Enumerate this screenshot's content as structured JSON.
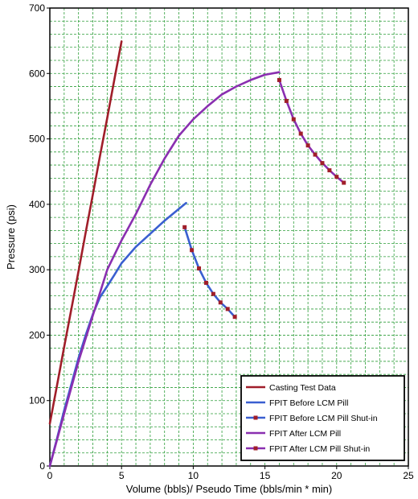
{
  "chart_data": {
    "type": "line",
    "xlabel": "Volume (bbls)/ Pseudo Time (bbls/min * min)",
    "ylabel": "Pressure (psi)",
    "xlim": [
      0,
      25
    ],
    "ylim": [
      0,
      700
    ],
    "xticks": [
      0,
      5,
      10,
      15,
      20,
      25
    ],
    "yticks": [
      0,
      100,
      200,
      300,
      400,
      500,
      600,
      700
    ],
    "grid": true,
    "grid_color": "#2e9e3a",
    "legend_position": "bottom-right",
    "series": [
      {
        "name": "Casting Test Data",
        "color": "#a01e2a",
        "marker": "none",
        "x": [
          0,
          0.5,
          1,
          1.5,
          2,
          2.5,
          3,
          3.5,
          4,
          4.5,
          5
        ],
        "y": [
          65,
          123,
          182,
          240,
          298,
          357,
          415,
          474,
          532,
          591,
          649
        ]
      },
      {
        "name": "FPIT Before LCM Pill",
        "color": "#3a5fd0",
        "marker": "none",
        "x": [
          0,
          0.5,
          1,
          1.5,
          2,
          2.5,
          3,
          3.5,
          4,
          4.5,
          5,
          6,
          7,
          8,
          9,
          9.5
        ],
        "y": [
          0,
          42,
          85,
          125,
          165,
          200,
          232,
          258,
          275,
          292,
          310,
          335,
          355,
          375,
          393,
          402
        ]
      },
      {
        "name": "FPIT Before LCM Pill Shut-in",
        "color": "#3a5fd0",
        "marker_color": "#a01e2a",
        "marker": "square",
        "x": [
          9.4,
          9.9,
          10.4,
          10.9,
          11.4,
          11.9,
          12.4,
          12.9
        ],
        "y": [
          365,
          330,
          302,
          280,
          263,
          250,
          240,
          228
        ]
      },
      {
        "name": "FPIT After LCM Pill",
        "color": "#8a2fb0",
        "marker": "none",
        "x": [
          0,
          0.5,
          1,
          2,
          3,
          4,
          5,
          6,
          7,
          8,
          9,
          10,
          11,
          12,
          13,
          14,
          15,
          16
        ],
        "y": [
          0,
          40,
          80,
          160,
          230,
          300,
          345,
          385,
          430,
          470,
          505,
          530,
          550,
          568,
          580,
          590,
          598,
          602
        ]
      },
      {
        "name": "FPIT After LCM Pill Shut-in",
        "color": "#8a2fb0",
        "marker_color": "#a01e2a",
        "marker": "square",
        "x": [
          16,
          16.5,
          17,
          17.5,
          18,
          18.5,
          19,
          19.5,
          20,
          20.5
        ],
        "y": [
          590,
          558,
          530,
          508,
          490,
          476,
          463,
          452,
          442,
          433
        ]
      }
    ]
  }
}
